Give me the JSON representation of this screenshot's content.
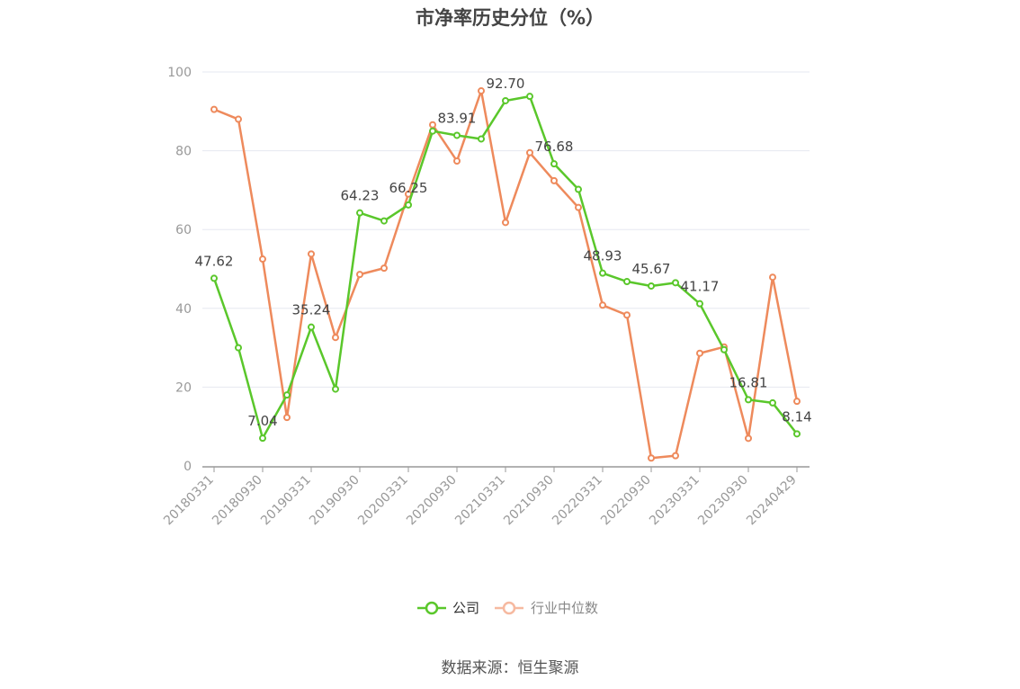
{
  "title": "市净率历史分位（%）",
  "source": "数据来源：恒生聚源",
  "colors": {
    "company": "#5ac72b",
    "industry": "#ee8a5c",
    "industry_legend": "#f6b9a0",
    "grid": "#e6e8f0",
    "axis": "#999999"
  },
  "chart_data": {
    "type": "line",
    "title": "市净率历史分位（%）",
    "xlabel": "",
    "ylabel": "",
    "ylim": [
      0,
      100
    ],
    "yticks": [
      0,
      20,
      40,
      60,
      80,
      100
    ],
    "grid": true,
    "legend_position": "bottom",
    "x": [
      "20180331",
      "20180630",
      "20180930",
      "20181231",
      "20190331",
      "20190630",
      "20190930",
      "20191231",
      "20200331",
      "20200630",
      "20200930",
      "20201231",
      "20210331",
      "20210630",
      "20210930",
      "20211231",
      "20220331",
      "20220630",
      "20220930",
      "20221231",
      "20230331",
      "20230630",
      "20230930",
      "20231231",
      "20240429"
    ],
    "x_tick_labels": [
      "20180331",
      "20180930",
      "20190331",
      "20190930",
      "20200331",
      "20200930",
      "20210331",
      "20210930",
      "20220331",
      "20220930",
      "20230331",
      "20230930",
      "20240429"
    ],
    "series": [
      {
        "name": "公司",
        "color": "#5ac72b",
        "values": [
          47.62,
          30.0,
          7.04,
          18.0,
          35.24,
          19.5,
          64.23,
          62.2,
          66.25,
          85.0,
          83.91,
          83.0,
          92.7,
          93.8,
          76.68,
          70.2,
          48.93,
          46.8,
          45.67,
          46.5,
          41.17,
          29.5,
          16.81,
          16.0,
          8.14
        ],
        "labeled": [
          47.62,
          null,
          7.04,
          null,
          35.24,
          null,
          64.23,
          null,
          66.25,
          null,
          83.91,
          null,
          92.7,
          null,
          76.68,
          null,
          48.93,
          null,
          45.67,
          null,
          41.17,
          null,
          16.81,
          null,
          8.14
        ]
      },
      {
        "name": "行业中位数",
        "color": "#ee8a5c",
        "values": [
          90.5,
          88.0,
          52.5,
          12.3,
          53.8,
          32.6,
          48.6,
          50.2,
          69.0,
          86.6,
          77.4,
          95.2,
          61.8,
          79.5,
          72.4,
          65.6,
          40.8,
          38.3,
          2.0,
          2.6,
          28.6,
          30.2,
          7.0,
          47.9,
          16.4
        ]
      }
    ]
  }
}
